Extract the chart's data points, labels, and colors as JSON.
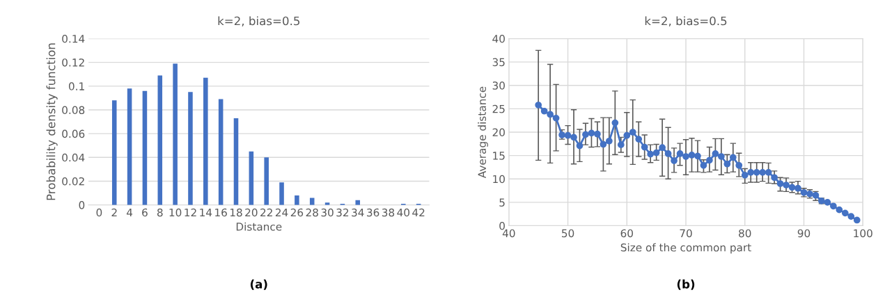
{
  "chart_data": [
    {
      "type": "bar",
      "title": "k=2, bias=0.5",
      "xlabel": "Distance",
      "ylabel": "Probability density function",
      "categories": [
        "0",
        "2",
        "4",
        "6",
        "8",
        "10",
        "12",
        "14",
        "16",
        "18",
        "20",
        "22",
        "24",
        "26",
        "28",
        "30",
        "32",
        "34",
        "36",
        "38",
        "40",
        "42"
      ],
      "values": [
        0,
        0.088,
        0.098,
        0.096,
        0.109,
        0.119,
        0.095,
        0.107,
        0.089,
        0.073,
        0.045,
        0.04,
        0.019,
        0.008,
        0.006,
        0.002,
        0.001,
        0.004,
        0,
        0,
        0.001,
        0.001
      ],
      "color": "#4472c4",
      "ylim": [
        0,
        0.14
      ],
      "yticks": [
        0,
        0.02,
        0.04,
        0.06,
        0.08,
        0.1,
        0.12,
        0.14
      ],
      "grid": "y",
      "annotations": [
        "(a)"
      ]
    },
    {
      "type": "line",
      "title": "k=2, bias=0.5",
      "xlabel": "Size of the common part",
      "ylabel": "Average distance",
      "x": [
        45,
        46,
        47,
        48,
        49,
        50,
        51,
        52,
        53,
        54,
        55,
        56,
        57,
        58,
        59,
        60,
        61,
        62,
        63,
        64,
        65,
        66,
        67,
        68,
        69,
        70,
        71,
        72,
        73,
        74,
        75,
        76,
        77,
        78,
        79,
        80,
        81,
        82,
        83,
        84,
        85,
        86,
        87,
        88,
        89,
        90,
        91,
        92,
        93,
        94,
        95,
        96,
        97,
        98,
        99
      ],
      "values": [
        25.8,
        24.5,
        23.8,
        23,
        19.4,
        19.3,
        18.9,
        17.1,
        19.5,
        19.8,
        19.6,
        17.4,
        18.1,
        22,
        17.3,
        19.3,
        20,
        18.5,
        16.8,
        15.3,
        15.6,
        16.7,
        15.4,
        13.9,
        15.4,
        14.8,
        15.1,
        14.9,
        12.9,
        14,
        15.4,
        14.8,
        13.2,
        14.6,
        12.9,
        10.8,
        11.4,
        11.4,
        11.4,
        11.4,
        10.3,
        9,
        8.7,
        8.2,
        8,
        7.1,
        6.8,
        6.5,
        5.3,
        5,
        4.2,
        3.4,
        2.7,
        2,
        1.2
      ],
      "errors": [
        [
          14,
          37.5
        ],
        null,
        [
          13.4,
          34.5
        ],
        [
          16,
          30.2
        ],
        [
          18.5,
          20.5
        ],
        [
          17.4,
          21.4
        ],
        [
          13.2,
          24.8
        ],
        [
          13.7,
          20.6
        ],
        [
          17.3,
          21.9
        ],
        [
          16.8,
          22.9
        ],
        [
          16.9,
          22.2
        ],
        [
          11.7,
          23.1
        ],
        [
          13.2,
          23.1
        ],
        [
          15.2,
          28.8
        ],
        [
          15.7,
          18.9
        ],
        [
          14.8,
          24.2
        ],
        [
          13.1,
          26.9
        ],
        [
          14.8,
          22.2
        ],
        [
          14.2,
          19.4
        ],
        [
          13.5,
          17.3
        ],
        [
          14,
          17.4
        ],
        [
          10.6,
          22.8
        ],
        [
          10,
          21
        ],
        [
          11.4,
          16.6
        ],
        [
          12.9,
          17.6
        ],
        [
          10.9,
          18.4
        ],
        [
          11.5,
          18.7
        ],
        [
          11.5,
          18.2
        ],
        [
          11.4,
          14.1
        ],
        [
          11.5,
          16.8
        ],
        [
          11.9,
          18.6
        ],
        [
          10.9,
          18.6
        ],
        [
          11.3,
          15.2
        ],
        [
          11.5,
          17.6
        ],
        [
          10.5,
          15.5
        ],
        [
          9.1,
          12.2
        ],
        [
          9.3,
          13.5
        ],
        [
          9.3,
          13.5
        ],
        [
          9.5,
          13.5
        ],
        [
          9.1,
          13.4
        ],
        [
          9,
          11.7
        ],
        [
          7.4,
          10.3
        ],
        [
          7.3,
          10.2
        ],
        [
          7.1,
          9.3
        ],
        [
          6.8,
          9.5
        ],
        [
          6.2,
          8
        ],
        [
          5.9,
          7.7
        ],
        [
          5.4,
          7.3
        ],
        [
          4.7,
          5.9
        ],
        null,
        null,
        null,
        null,
        null,
        null
      ],
      "color": "#4472c4",
      "marker": "circle",
      "line_style": "solid",
      "xlim": [
        40,
        100
      ],
      "xticks": [
        40,
        50,
        60,
        70,
        80,
        90,
        100
      ],
      "ylim": [
        0,
        40
      ],
      "yticks": [
        0,
        5,
        10,
        15,
        20,
        25,
        30,
        35,
        40
      ],
      "grid": true,
      "annotations": [
        "(b)"
      ]
    }
  ]
}
